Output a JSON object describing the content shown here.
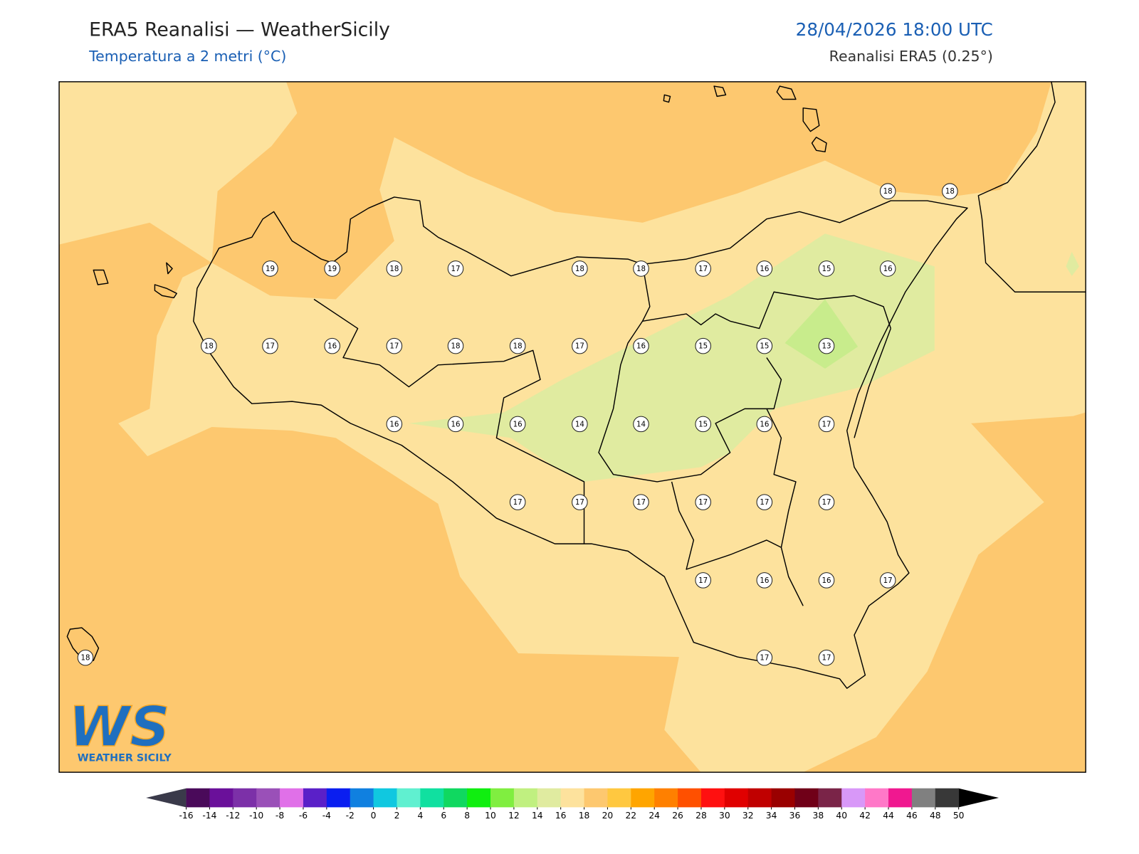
{
  "header": {
    "title": "ERA5 Reanalisi — WeatherSicily",
    "subtitle": "Temperatura a 2 metri (°C)",
    "date": "28/04/2026 18:00 UTC",
    "source": "Reanalisi ERA5 (0.25°)"
  },
  "stations": [
    18,
    18,
    19,
    19,
    18,
    17,
    18,
    18,
    17,
    16,
    15,
    16,
    18,
    17,
    16,
    17,
    18,
    18,
    17,
    16,
    15,
    15,
    13,
    16,
    16,
    16,
    14,
    14,
    15,
    16,
    17,
    17,
    17,
    17,
    17,
    17,
    17,
    17,
    16,
    16,
    17,
    17,
    17,
    18
  ],
  "colorbar": {
    "ticks": [
      -16,
      -14,
      -12,
      -10,
      -8,
      -6,
      -4,
      -2,
      0,
      2,
      4,
      6,
      8,
      10,
      12,
      14,
      16,
      18,
      20,
      22,
      24,
      26,
      28,
      30,
      32,
      34,
      36,
      38,
      40,
      42,
      44,
      46,
      48,
      50
    ],
    "colors": [
      "#4a0a5a",
      "#6a109a",
      "#7c30a8",
      "#9a50b8",
      "#e070e8",
      "#5a20c8",
      "#0a1ef0",
      "#1080e0",
      "#10c8e0",
      "#60f0d0",
      "#10e0a0",
      "#10d860",
      "#10ee10",
      "#80ee40",
      "#c0f080",
      "#e0eba0",
      "#fde29d",
      "#fdc86f",
      "#ffc840",
      "#ffa500",
      "#ff8000",
      "#ff5000",
      "#ff1010",
      "#e00000",
      "#c00000",
      "#9a0000",
      "#700018",
      "#7a2448",
      "#d898f8",
      "#ff78c8",
      "#f01890",
      "#808080",
      "#383838"
    ],
    "under_color": "#3a3a4a",
    "over_color": "#000000"
  },
  "logo": {
    "mark": "WS",
    "text": "WEATHER SICILY"
  }
}
